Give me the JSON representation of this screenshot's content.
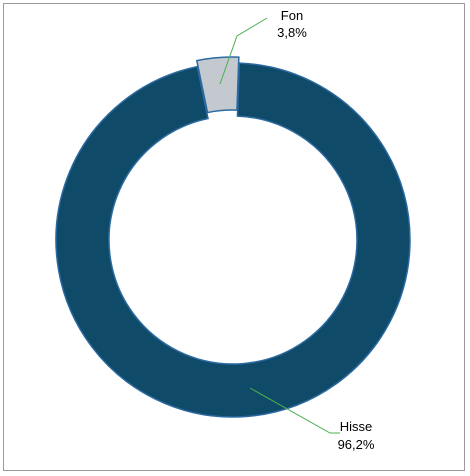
{
  "chart_data": {
    "type": "pie",
    "donut": true,
    "slices": [
      {
        "name": "Hisse",
        "value": 96.2,
        "label": "96,2%",
        "color": "#0f4a68"
      },
      {
        "name": "Fon",
        "value": 3.8,
        "label": "3,8%",
        "color": "#c4c9d0"
      }
    ],
    "exploded_slice": "Fon",
    "legend": "none",
    "title": "",
    "colors": {
      "outline": "#2a6aa0",
      "leader_line": "#4caf50"
    }
  }
}
